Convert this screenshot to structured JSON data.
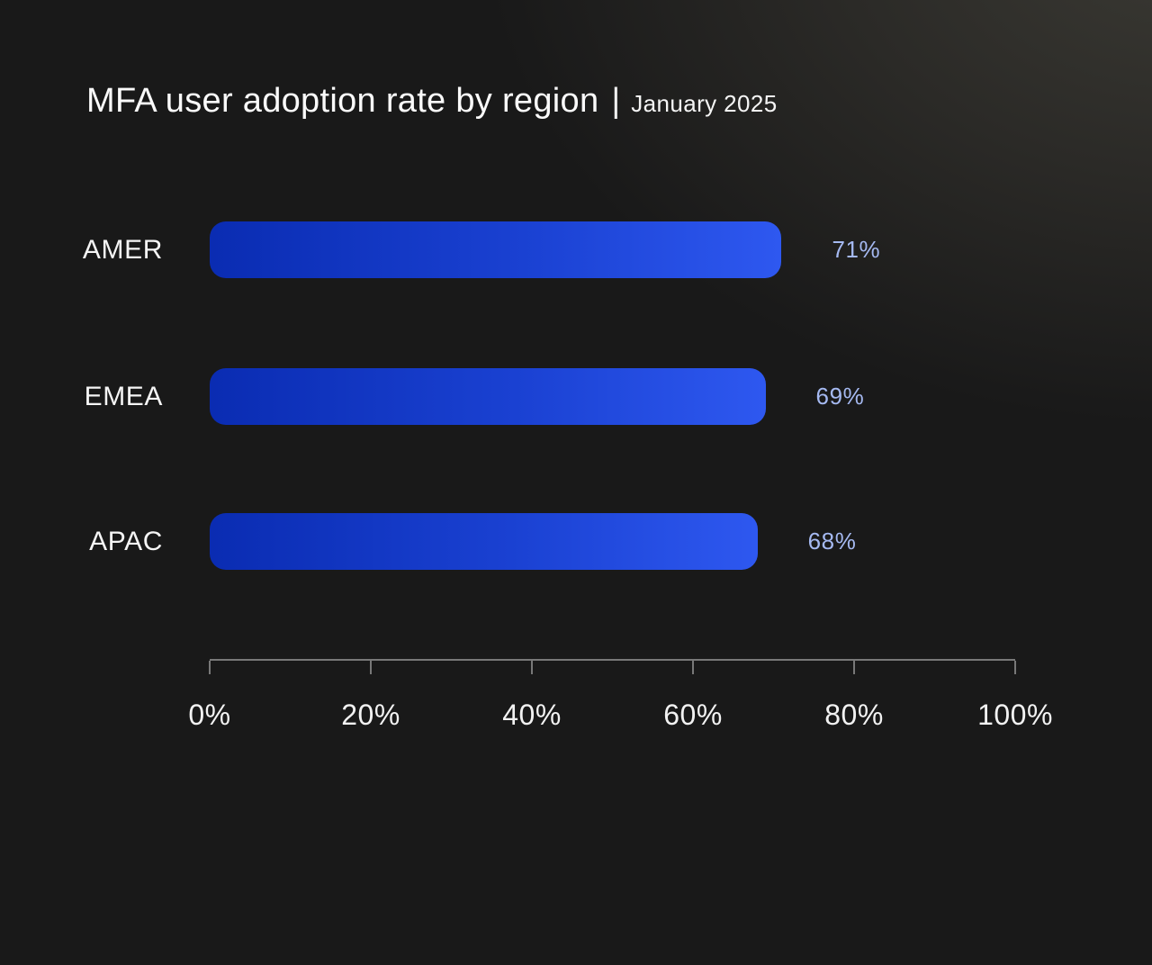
{
  "header": {
    "title": "MFA user adoption rate by region",
    "separator": "|",
    "subtitle": "January 2025"
  },
  "chart_data": {
    "type": "bar",
    "orientation": "horizontal",
    "title": "MFA user adoption rate by region",
    "subtitle": "January 2025",
    "categories": [
      "AMER",
      "EMEA",
      "APAC"
    ],
    "values": [
      71,
      69,
      68
    ],
    "value_labels": [
      "71%",
      "69%",
      "68%"
    ],
    "xlabel": "",
    "ylabel": "",
    "xlim": [
      0,
      100
    ],
    "grid": false,
    "legend": false,
    "axis": {
      "tick_positions": [
        0,
        20,
        40,
        60,
        80,
        100
      ],
      "tick_labels": [
        "0%",
        "20%",
        "40%",
        "60%",
        "80%",
        "100%"
      ]
    },
    "colors": {
      "background_dark": "#191919",
      "background_glow": "#3b3a34",
      "bar_gradient_start": "#0a2cb2",
      "bar_gradient_end": "#2e58f0",
      "value_label_text": "#a5b9f1",
      "category_text": "#f5f5f5",
      "axis_line": "#787878",
      "axis_text": "#f2f2f2",
      "title_text": "#fafafa"
    }
  }
}
